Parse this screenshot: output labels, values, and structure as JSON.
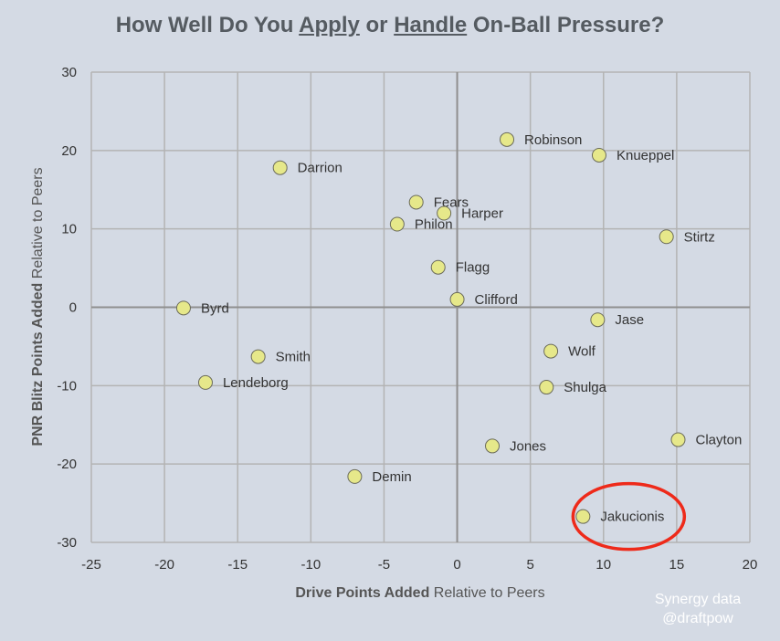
{
  "chart_data": {
    "type": "scatter",
    "title_parts": [
      "How Well Do You ",
      "Apply",
      " or ",
      "Handle",
      " On-Ball Pressure?"
    ],
    "xlabel_bold": "Drive Points Added",
    "xlabel_rest": " Relative to Peers",
    "ylabel_bold": "PNR Blitz Points Added",
    "ylabel_rest": " Relative to Peers",
    "xlim": [
      -25,
      20
    ],
    "ylim": [
      -30,
      30
    ],
    "x_ticks": [
      -25,
      -20,
      -15,
      -10,
      -5,
      0,
      5,
      10,
      15,
      20
    ],
    "y_ticks": [
      -30,
      -20,
      -10,
      0,
      10,
      20,
      30
    ],
    "grid": true,
    "marker_color": "#e6e88a",
    "highlight_color": "#ee2a1a",
    "points": [
      {
        "label": "Robinson",
        "x": 3.4,
        "y": 21.4
      },
      {
        "label": "Knueppel",
        "x": 9.7,
        "y": 19.4
      },
      {
        "label": "Darrion",
        "x": -12.1,
        "y": 17.8
      },
      {
        "label": "Fears",
        "x": -2.8,
        "y": 13.4
      },
      {
        "label": "Harper",
        "x": -0.9,
        "y": 12.0
      },
      {
        "label": "Philon",
        "x": -4.1,
        "y": 10.6
      },
      {
        "label": "Stirtz",
        "x": 14.3,
        "y": 9.0
      },
      {
        "label": "Flagg",
        "x": -1.3,
        "y": 5.1
      },
      {
        "label": "Clifford",
        "x": 0.0,
        "y": 1.0
      },
      {
        "label": "Byrd",
        "x": -18.7,
        "y": -0.1
      },
      {
        "label": "Jase",
        "x": 9.6,
        "y": -1.6
      },
      {
        "label": "Wolf",
        "x": 6.4,
        "y": -5.6
      },
      {
        "label": "Smith",
        "x": -13.6,
        "y": -6.3
      },
      {
        "label": "Lendeborg",
        "x": -17.2,
        "y": -9.6
      },
      {
        "label": "Shulga",
        "x": 6.1,
        "y": -10.2
      },
      {
        "label": "Clayton",
        "x": 15.1,
        "y": -16.9
      },
      {
        "label": "Jones",
        "x": 2.4,
        "y": -17.7
      },
      {
        "label": "Demin",
        "x": -7.0,
        "y": -21.6
      },
      {
        "label": "Jakucionis",
        "x": 8.6,
        "y": -26.7,
        "highlight": true
      }
    ]
  },
  "credit": {
    "line1": "Synergy data",
    "line2": "@draftpow"
  }
}
